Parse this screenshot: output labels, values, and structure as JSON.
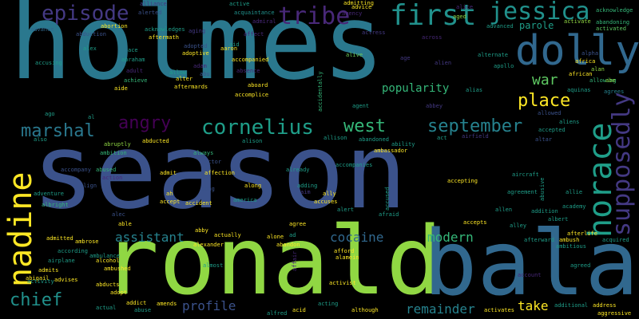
{
  "words": {
    "holmes": "holmes",
    "season": "season",
    "ronald": "ronald",
    "bala": "bala",
    "dolly": "dolly",
    "horace": "horace",
    "nadine": "nadine",
    "supposedly": "supposedly",
    "first": "first",
    "jessica": "jessica",
    "tribe": "tribe",
    "episode": "episode",
    "cornelius": "cornelius",
    "september": "september",
    "west": "west",
    "angry": "angry",
    "marshal": "marshal",
    "place": "place",
    "war": "war",
    "chief": "chief",
    "assistant": "assistant",
    "modern": "modern",
    "cocaine": "cocaine",
    "remainder": "remainder",
    "take": "take",
    "profile": "profile",
    "popularity": "popularity",
    "alliance": "alliance",
    "alerted": "alerted",
    "active": "active",
    "admitting": "admitting",
    "alice": "alice",
    "aged": "aged",
    "acknowledge": "acknowledge",
    "advance": "advance",
    "abortion": "abortion",
    "acquaintance": "acquaintance",
    "admiral": "admiral",
    "agency": "agency",
    "advice": "advice",
    "abandoning": "abandoning",
    "activated": "activated",
    "activate": "activate",
    "advanced": "advanced",
    "parole": "parole",
    "aging": "aging",
    "affect": "affect",
    "aid": "aid",
    "acknowledges": "acknowledges",
    "abduction": "abduction",
    "alex": "alex",
    "alpha": "alpha",
    "actress": "actress",
    "across": "across",
    "alternate": "alternate",
    "alive": "alive",
    "age": "age",
    "alien": "alien",
    "accusing": "accusing",
    "adopted": "adopted",
    "adoptive": "adoptive",
    "accompanied": "accompanied",
    "adam": "adam",
    "abu": "abu",
    "adult": "adult",
    "allow": "allow",
    "absence": "absence",
    "aboard": "aboard",
    "accomplice": "accomplice",
    "achieve": "achieve",
    "aide": "aide",
    "aftermards": "aftermards",
    "accidentally": "accidentally",
    "alias": "alias",
    "agent": "agent",
    "abbey": "abbey",
    "ago": "ago",
    "allowing": "allowing",
    "alan": "alan",
    "abe": "abe",
    "agrees": "agrees",
    "aliens": "aliens",
    "allowed": "allowed",
    "altar": "altar",
    "al": "al",
    "alison": "alison",
    "allison": "allison",
    "abducted": "abducted",
    "abandoned": "abandoned",
    "ambassador": "ambassador",
    "ability": "ability",
    "act": "act",
    "airfield": "airfield",
    "abruptly": "abruptly",
    "ambition": "ambition",
    "always": "always",
    "actor": "actor",
    "also": "also",
    "accompany": "accompany",
    "abused": "abused",
    "admit": "admit",
    "affection": "affection",
    "already": "already",
    "accompanies": "accompanies",
    "aircraft": "aircraft",
    "abusive": "abusive",
    "adventure": "adventure",
    "align": "align",
    "action": "action",
    "accepting": "accepting",
    "aim": "aim",
    "accept": "accept",
    "agreement": "agreement",
    "allie": "allie",
    "albright": "albright",
    "ah": "ah",
    "aang": "aang",
    "adding": "adding",
    "ally": "ally",
    "accused": "accused",
    "academy": "academy",
    "accident": "accident",
    "america": "america",
    "accuses": "accuses",
    "alert": "alert",
    "addition": "addition",
    "albert": "albert",
    "alec": "alec",
    "allen": "allen",
    "able": "able",
    "abby": "abby",
    "agree": "agree",
    "afraid": "afraid",
    "accepts": "accepts",
    "alley": "alley",
    "afterlife": "afterlife",
    "ambush": "ambush",
    "acquired": "acquired",
    "admitted": "admitted",
    "ambrose": "ambrose",
    "alexander": "alexander",
    "actually": "actually",
    "alone": "alone",
    "ad": "ad",
    "abandon": "abandon",
    "afford": "afford",
    "alamein": "alamein",
    "afterward": "afterward",
    "ambitious": "ambitious",
    "according": "according",
    "airplane": "airplane",
    "alcohol": "alcohol",
    "ambushed": "ambushed",
    "almost": "almost",
    "affair": "affair",
    "abigail": "abigail",
    "admits": "admits",
    "activity": "activity",
    "advises": "advises",
    "abducts": "abducts",
    "adopt": "adopt",
    "activist": "activist",
    "agreed": "agreed",
    "account": "account",
    "ambulance": "ambulance",
    "actual": "actual",
    "addict": "addict",
    "amends": "amends",
    "alfred": "alfred",
    "acid": "acid",
    "acting": "acting",
    "although": "although",
    "activates": "activates",
    "additional": "additional",
    "address": "address",
    "aggressive": "aggressive",
    "abuse": "abuse",
    "along": "along",
    "africa": "africa",
    "african": "african",
    "aquinas": "aquinas",
    "apollo": "apollo",
    "accepted": "accepted",
    "aftermath": "aftermath",
    "alter": "alter",
    "aaron": "aaron",
    "ace": "ace",
    "abraham": "abraham"
  }
}
